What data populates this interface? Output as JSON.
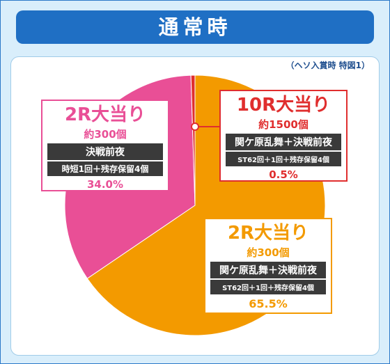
{
  "header": {
    "title": "通常時"
  },
  "note": "（ヘソ入賞時 特図1）",
  "colors": {
    "pink": "#e94f96",
    "orange": "#f39a00",
    "red": "#e02e2e",
    "frame": "#1f6fc4"
  },
  "chart_data": {
    "type": "pie",
    "slices": [
      {
        "value": 65.5,
        "color": "#f39a00",
        "title": "2R大当り",
        "count": "約300個",
        "mode": "関ケ原乱舞＋決戦前夜",
        "detail": "ST62回＋1回＋残存保留4個",
        "pct": "65.5%"
      },
      {
        "value": 34.0,
        "color": "#e94f96",
        "title": "2R大当り",
        "count": "約300個",
        "mode": "決戦前夜",
        "detail": "時短1回＋残存保留4個",
        "pct": "34.0%"
      },
      {
        "value": 0.5,
        "color": "#e02e2e",
        "title": "10R大当り",
        "count": "約1500個",
        "mode": "関ケ原乱舞＋決戦前夜",
        "detail": "ST62回＋1回＋残存保留4個",
        "pct": "0.5%"
      }
    ]
  }
}
